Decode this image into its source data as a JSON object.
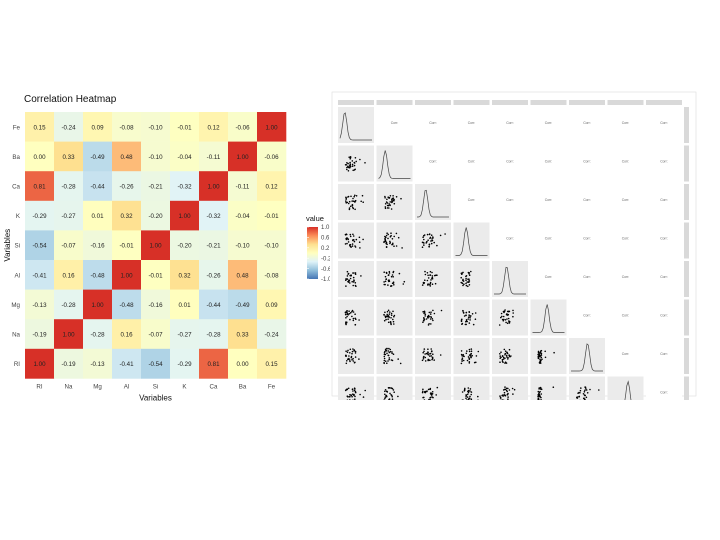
{
  "chart_data": [
    {
      "type": "heatmap",
      "title": "Correlation Heatmap",
      "xlabel": "Variables",
      "ylabel": "Variables",
      "x_categories": [
        "RI",
        "Na",
        "Mg",
        "Al",
        "Si",
        "K",
        "Ca",
        "Ba",
        "Fe"
      ],
      "y_categories": [
        "Fe",
        "Ba",
        "Ca",
        "K",
        "Si",
        "Al",
        "Mg",
        "Na",
        "RI"
      ],
      "values": [
        [
          0.15,
          -0.24,
          0.09,
          -0.08,
          -0.1,
          -0.01,
          0.12,
          -0.06,
          1.0
        ],
        [
          0.0,
          0.33,
          -0.49,
          0.48,
          -0.1,
          -0.04,
          -0.11,
          1.0,
          -0.06
        ],
        [
          0.81,
          -0.28,
          -0.44,
          -0.26,
          -0.21,
          -0.32,
          1.0,
          -0.11,
          0.12
        ],
        [
          -0.29,
          -0.27,
          0.01,
          0.32,
          -0.2,
          1.0,
          -0.32,
          -0.04,
          -0.01
        ],
        [
          -0.54,
          -0.07,
          -0.16,
          -0.01,
          1.0,
          -0.2,
          -0.21,
          -0.1,
          -0.1
        ],
        [
          -0.41,
          0.16,
          -0.48,
          1.0,
          -0.01,
          0.32,
          -0.26,
          0.48,
          -0.08
        ],
        [
          -0.13,
          -0.28,
          1.0,
          -0.48,
          -0.16,
          0.01,
          -0.44,
          -0.49,
          0.09
        ],
        [
          -0.19,
          1.0,
          -0.28,
          0.16,
          -0.07,
          -0.27,
          -0.28,
          0.33,
          -0.24
        ],
        [
          1.0,
          -0.19,
          -0.13,
          -0.41,
          -0.54,
          -0.29,
          0.81,
          0.0,
          0.15
        ]
      ],
      "value_labels": [
        [
          "0.15",
          "-0.24",
          "0.09",
          "-0.08",
          "-0.10",
          "-0.01",
          "0.12",
          "-0.06",
          "1.00"
        ],
        [
          "0.00",
          "0.33",
          "-0.49",
          "0.48",
          "-0.10",
          "-0.04",
          "-0.11",
          "1.00",
          "-0.06"
        ],
        [
          "0.81",
          "-0.28",
          "-0.44",
          "-0.26",
          "-0.21",
          "-0.32",
          "1.00",
          "-0.11",
          "0.12"
        ],
        [
          "-0.29",
          "-0.27",
          "0.01",
          "0.32",
          "-0.20",
          "1.00",
          "-0.32",
          "-0.04",
          "-0.01"
        ],
        [
          "-0.54",
          "-0.07",
          "-0.16",
          "-0.01",
          "1.00",
          "-0.20",
          "-0.21",
          "-0.10",
          "-0.10"
        ],
        [
          "-0.41",
          "0.16",
          "-0.48",
          "1.00",
          "-0.01",
          "0.32",
          "-0.26",
          "0.48",
          "-0.08"
        ],
        [
          "-0.13",
          "-0.28",
          "1.00",
          "-0.48",
          "-0.16",
          "0.01",
          "-0.44",
          "-0.49",
          "0.09"
        ],
        [
          "-0.19",
          "1.00",
          "-0.28",
          "0.16",
          "-0.07",
          "-0.27",
          "-0.28",
          "0.33",
          "-0.24"
        ],
        [
          "1.00",
          "-0.19",
          "-0.13",
          "-0.41",
          "-0.54",
          "-0.29",
          "0.81",
          "0.00",
          "0.15"
        ]
      ],
      "legend": {
        "title": "value",
        "ticks": [
          1.0,
          0.6,
          0.2,
          -0.2,
          -0.6,
          -1.0
        ],
        "tick_labels": [
          "1.0",
          "0.6",
          "0.2",
          "-0.2",
          "-0.6",
          "-1.0"
        ],
        "placement": "right"
      },
      "color_scale": {
        "range": [
          -1,
          1
        ],
        "stops": [
          "#4575b4",
          "#91bfdb",
          "#e0f3f8",
          "#ffffbf",
          "#fee090",
          "#fc8d59",
          "#d73027"
        ]
      },
      "grid": false
    },
    {
      "type": "scatter",
      "subtype": "pairs-matrix",
      "variables": [
        "RI",
        "Na",
        "Mg",
        "Al",
        "Si",
        "K",
        "Ca",
        "Ba",
        "Fe"
      ],
      "upper_panel_text": "Corr:",
      "lower_panels": "scatter",
      "diagonal_panels": "density",
      "colors": {
        "strip": "#d9d9d9",
        "panel": "#ebebeb",
        "point": "#000000"
      }
    }
  ]
}
